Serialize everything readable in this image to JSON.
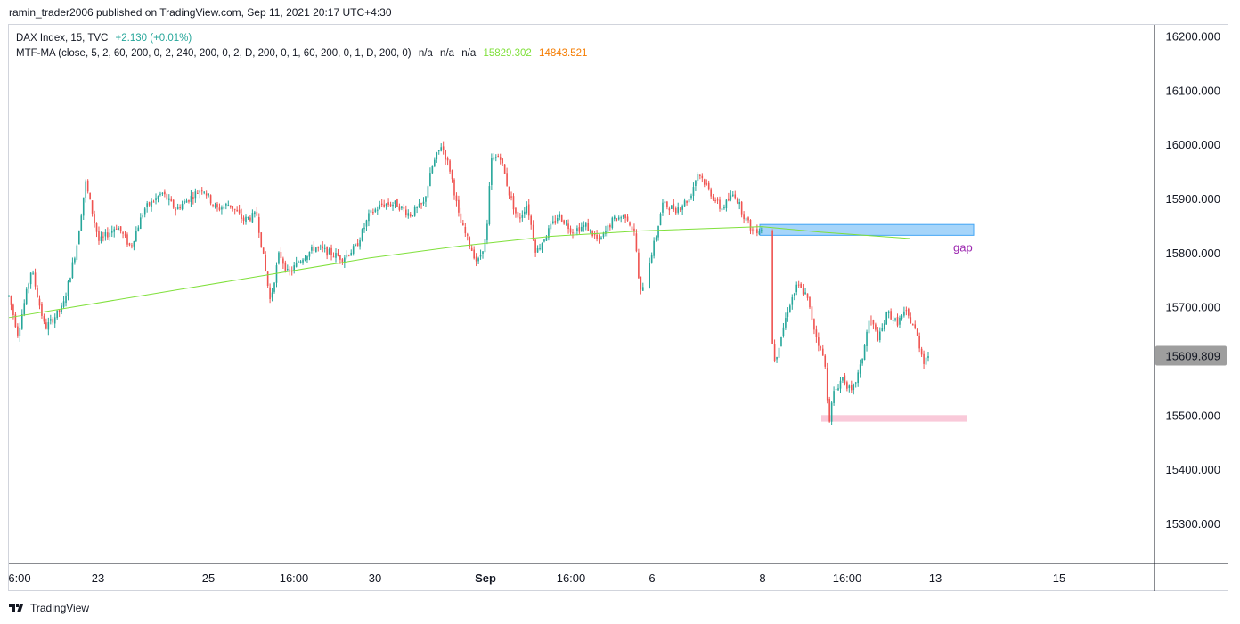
{
  "publisher": "ramin_trader2006 published on TradingView.com, Sep 11, 2021 20:17 UTC+4:30",
  "legend": {
    "symbol": "DAX Index, 15, TVC",
    "change": "+2.130 (+0.01%)",
    "indicator": "MTF-MA (close, 5, 2, 60, 200, 0, 2, 240, 200, 0, 2, D, 200, 0, 1, 60, 200, 0, 1, D, 200, 0)",
    "na1": "n/a",
    "na2": "n/a",
    "na3": "n/a",
    "ma1_value": "15829.302",
    "ma2_value": "14843.521"
  },
  "logo_text": "TradingView",
  "colors": {
    "up_candle": "#26a69a",
    "down_candle": "#ef5350",
    "ma_line": "#7fe03a",
    "gap_zone": "#90caf9",
    "support_zone": "#f8bbd0",
    "annotation": "#9c27b0"
  },
  "chart_data": {
    "type": "candlestick",
    "title": "DAX Index, 15, TVC",
    "ylim": [
      15230,
      16230
    ],
    "y_ticks": [
      "16200.000",
      "16100.000",
      "16000.000",
      "15900.000",
      "15800.000",
      "15700.000",
      "15609.809",
      "15500.000",
      "15400.000",
      "15300.000"
    ],
    "x_ticks": [
      "6:00",
      "23",
      "25",
      "16:00",
      "30",
      "Sep",
      "16:00",
      "6",
      "8",
      "16:00",
      "13",
      "15"
    ],
    "last_price": "15609.809",
    "gap_zone": {
      "label": "gap",
      "y_top": 15852,
      "y_bottom": 15832
    },
    "support_zone": {
      "y_top": 15500,
      "y_bottom": 15488
    },
    "price_path": [
      [
        0,
        15720
      ],
      [
        0.01,
        15650
      ],
      [
        0.025,
        15770
      ],
      [
        0.04,
        15660
      ],
      [
        0.06,
        15700
      ],
      [
        0.075,
        15810
      ],
      [
        0.085,
        15930
      ],
      [
        0.1,
        15820
      ],
      [
        0.12,
        15850
      ],
      [
        0.135,
        15810
      ],
      [
        0.15,
        15880
      ],
      [
        0.17,
        15910
      ],
      [
        0.185,
        15880
      ],
      [
        0.2,
        15900
      ],
      [
        0.215,
        15920
      ],
      [
        0.23,
        15880
      ],
      [
        0.245,
        15890
      ],
      [
        0.26,
        15860
      ],
      [
        0.275,
        15870
      ],
      [
        0.29,
        15710
      ],
      [
        0.3,
        15800
      ],
      [
        0.31,
        15760
      ],
      [
        0.325,
        15790
      ],
      [
        0.34,
        15810
      ],
      [
        0.355,
        15800
      ],
      [
        0.37,
        15790
      ],
      [
        0.385,
        15810
      ],
      [
        0.4,
        15870
      ],
      [
        0.415,
        15890
      ],
      [
        0.43,
        15890
      ],
      [
        0.445,
        15870
      ],
      [
        0.46,
        15890
      ],
      [
        0.47,
        15960
      ],
      [
        0.48,
        16000
      ],
      [
        0.49,
        15950
      ],
      [
        0.5,
        15860
      ],
      [
        0.51,
        15820
      ],
      [
        0.52,
        15780
      ],
      [
        0.53,
        15830
      ],
      [
        0.535,
        15970
      ],
      [
        0.545,
        15980
      ],
      [
        0.555,
        15910
      ],
      [
        0.565,
        15860
      ],
      [
        0.575,
        15890
      ],
      [
        0.585,
        15800
      ],
      [
        0.595,
        15830
      ],
      [
        0.61,
        15870
      ],
      [
        0.625,
        15840
      ],
      [
        0.64,
        15850
      ],
      [
        0.655,
        15820
      ],
      [
        0.67,
        15860
      ],
      [
        0.685,
        15870
      ],
      [
        0.695,
        15830
      ],
      [
        0.7,
        15720
      ],
      [
        0.71,
        15780
      ],
      [
        0.718,
        15830
      ],
      [
        0.725,
        15890
      ],
      [
        0.74,
        15880
      ],
      [
        0.755,
        15900
      ],
      [
        0.765,
        15950
      ],
      [
        0.775,
        15920
      ],
      [
        0.79,
        15880
      ],
      [
        0.805,
        15910
      ],
      [
        0.815,
        15870
      ],
      [
        0.825,
        15840
      ],
      [
        0.835,
        15845
      ],
      [
        0.84,
        15710
      ],
      [
        0.85,
        15600
      ],
      [
        0.865,
        15700
      ],
      [
        0.875,
        15740
      ],
      [
        0.885,
        15720
      ],
      [
        0.895,
        15650
      ],
      [
        0.905,
        15600
      ],
      [
        0.91,
        15490
      ],
      [
        0.915,
        15540
      ],
      [
        0.925,
        15570
      ],
      [
        0.935,
        15540
      ],
      [
        0.945,
        15590
      ],
      [
        0.955,
        15680
      ],
      [
        0.965,
        15640
      ],
      [
        0.975,
        15690
      ],
      [
        0.985,
        15670
      ],
      [
        0.995,
        15690
      ],
      [
        1.005,
        15660
      ],
      [
        1.015,
        15600
      ],
      [
        1.02,
        15612
      ]
    ],
    "ma_path": [
      [
        0,
        15680
      ],
      [
        0.2,
        15735
      ],
      [
        0.4,
        15790
      ],
      [
        0.5,
        15812
      ],
      [
        0.6,
        15830
      ],
      [
        0.7,
        15840
      ],
      [
        0.8,
        15846
      ],
      [
        0.835,
        15848
      ],
      [
        0.9,
        15838
      ],
      [
        1.0,
        15826
      ]
    ]
  }
}
